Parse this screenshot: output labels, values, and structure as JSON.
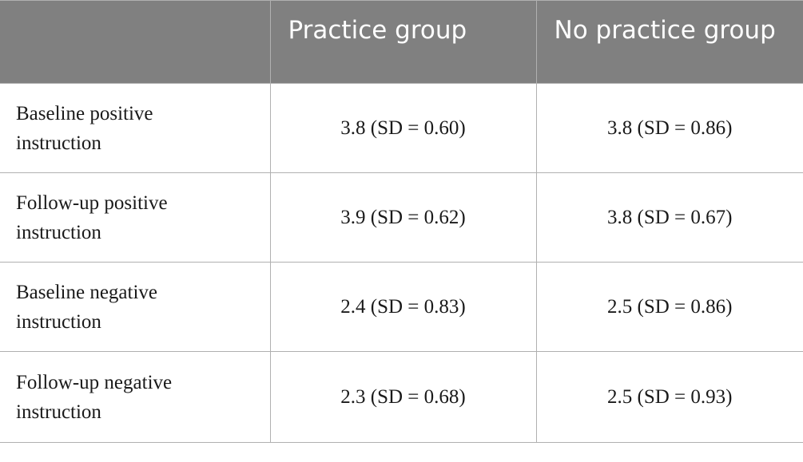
{
  "table": {
    "headers": [
      "",
      "Practice group",
      "No practice group"
    ],
    "rows": [
      {
        "label": "Baseline positive instruction",
        "practice": "3.8 (SD = 0.60)",
        "no_practice": "3.8 (SD = 0.86)"
      },
      {
        "label": "Follow-up positive instruction",
        "practice": "3.9 (SD = 0.62)",
        "no_practice": "3.8 (SD = 0.67)"
      },
      {
        "label": "Baseline negative instruction",
        "practice": "2.4 (SD = 0.83)",
        "no_practice": "2.5 (SD = 0.86)"
      },
      {
        "label": "Follow-up negative instruction",
        "practice": "2.3 (SD = 0.68)",
        "no_practice": "2.5 (SD = 0.93)"
      }
    ]
  },
  "colors": {
    "header_background": "#808080",
    "header_text": "#ffffff",
    "grid_line": "#b0b0b0",
    "body_text": "#1a1a1a"
  }
}
